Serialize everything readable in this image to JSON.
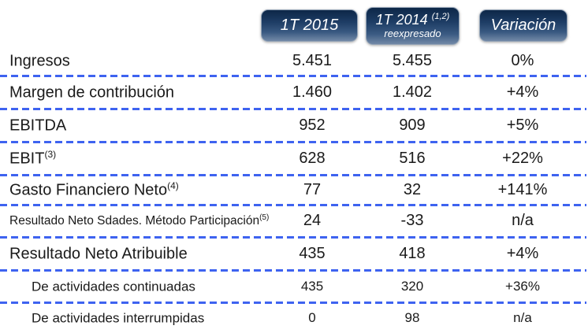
{
  "table": {
    "columns": [
      {
        "label": "1T 2015",
        "superscript": "",
        "sublabel": ""
      },
      {
        "label": "1T 2014",
        "superscript": "(1,2)",
        "sublabel": "reexpresado"
      },
      {
        "label": "Variación",
        "superscript": "",
        "sublabel": ""
      }
    ],
    "rows": [
      {
        "label": "Ingresos",
        "sup": "",
        "v2015": "5.451",
        "v2014": "5.455",
        "variacion": "0%"
      },
      {
        "label": "Margen de contribución",
        "sup": "",
        "v2015": "1.460",
        "v2014": "1.402",
        "variacion": "+4%"
      },
      {
        "label": "EBITDA",
        "sup": "",
        "v2015": "952",
        "v2014": "909",
        "variacion": "+5%"
      },
      {
        "label": "EBIT",
        "sup": "(3)",
        "v2015": "628",
        "v2014": "516",
        "variacion": "+22%"
      },
      {
        "label": "Gasto Financiero Neto",
        "sup": "(4)",
        "v2015": "77",
        "v2014": "32",
        "variacion": "+141%"
      },
      {
        "label": "Resultado Neto Sdades. Método Participación",
        "sup": "(5)",
        "v2015": "24",
        "v2014": "-33",
        "variacion": "n/a"
      },
      {
        "label": "Resultado Neto Atribuible",
        "sup": "",
        "v2015": "435",
        "v2014": "418",
        "variacion": "+4%"
      },
      {
        "label": "De actividades continuadas",
        "sup": "",
        "v2015": "435",
        "v2014": "320",
        "variacion": "+36%"
      },
      {
        "label": "De actividades interrumpidas",
        "sup": "",
        "v2015": "0",
        "v2014": "98",
        "variacion": "n/a"
      }
    ],
    "colors": {
      "dash_blue": "#3e63f0",
      "pill_gradient_top": "#0d2748",
      "pill_gradient_bottom": "#7289a7",
      "text": "#1a1a1a"
    }
  }
}
